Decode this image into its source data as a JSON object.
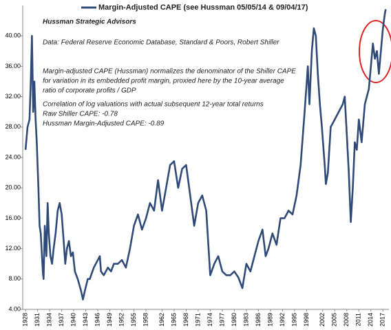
{
  "chart_data": {
    "type": "line",
    "annotations": [
      "Hussman Strategic Advisors",
      "Data: Federal Reserve Economic Database, Standard & Poors, Robert Shiller",
      "Margin-adjusted CAPE (Hussman) normalizes the denominator of the Shiller CAPE",
      "for variation in its embedded profit margin, proxied here by the 10-year average",
      "ratio of corporate profits / GDP",
      "Correlation of log valuations with actual subsequent 12-year total returns",
      "Raw Shiller CAPE: -0.78",
      "Hussman Margin-Adjusted CAPE: -0.89"
    ],
    "x": [
      1928.0,
      1928.5,
      1929.0,
      1929.3,
      1929.6,
      1929.9,
      1930.2,
      1930.5,
      1930.8,
      1931.2,
      1931.5,
      1931.8,
      1932.3,
      1932.5,
      1932.8,
      1933.2,
      1933.5,
      1933.8,
      1934.2,
      1934.6,
      1935.0,
      1935.5,
      1936.0,
      1936.5,
      1937.0,
      1937.5,
      1937.9,
      1938.3,
      1938.8,
      1939.3,
      1939.8,
      1940.3,
      1941.0,
      1941.8,
      1942.3,
      1942.8,
      1943.5,
      1944.0,
      1945.0,
      1946.0,
      1946.5,
      1946.8,
      1947.5,
      1948.5,
      1949.3,
      1950.0,
      1951.0,
      1952.0,
      1953.0,
      1954.0,
      1955.0,
      1956.0,
      1957.0,
      1958.0,
      1959.0,
      1960.0,
      1961.0,
      1962.0,
      1963.0,
      1964.0,
      1965.0,
      1966.0,
      1967.0,
      1968.0,
      1969.0,
      1970.0,
      1971.0,
      1972.0,
      1973.0,
      1974.0,
      1975.0,
      1976.0,
      1977.0,
      1978.0,
      1979.0,
      1980.0,
      1981.0,
      1982.0,
      1983.0,
      1984.0,
      1985.0,
      1986.0,
      1987.0,
      1987.8,
      1988.5,
      1989.5,
      1990.5,
      1991.5,
      1992.5,
      1993.5,
      1994.5,
      1995.5,
      1996.5,
      1997.5,
      1998.3,
      1998.7,
      1999.3,
      1999.8,
      2000.3,
      2000.8,
      2001.3,
      2001.8,
      2002.5,
      2002.8,
      2003.3,
      2004.0,
      2005.0,
      2006.0,
      2007.0,
      2007.5,
      2008.0,
      2008.5,
      2009.0,
      2009.5,
      2010.0,
      2010.5,
      2011.0,
      2011.7,
      2012.5,
      2013.5,
      2014.0,
      2014.5,
      2015.0,
      2015.5,
      2016.0,
      2016.5,
      2017.0,
      2017.5,
      2017.7
    ],
    "series": [
      {
        "name": "Margin-Adjusted CAPE (see Hussman 05/05/14 & 09/04/17)",
        "color": "#2f4a78",
        "values": [
          25,
          28,
          29,
          34,
          40,
          30,
          34,
          29,
          26,
          20,
          15,
          14,
          9,
          8,
          15,
          11,
          18,
          14,
          11,
          10,
          12,
          14,
          17,
          18,
          16.5,
          13,
          10,
          12,
          13,
          11,
          11.5,
          9,
          8,
          6.5,
          5.3,
          6.5,
          8,
          8,
          9.5,
          10.5,
          11,
          9,
          8.5,
          9.5,
          9,
          10,
          10,
          10.5,
          9.5,
          12,
          15,
          16.5,
          14.5,
          16,
          18,
          17,
          21,
          17,
          20,
          23,
          23.5,
          20,
          22.5,
          23,
          19,
          15,
          18,
          19,
          17,
          8.5,
          10,
          11,
          9,
          8.5,
          8.5,
          9,
          8.2,
          6.8,
          10,
          9,
          11,
          13,
          14.5,
          11,
          12,
          14,
          12.5,
          16,
          16,
          17,
          16.5,
          19,
          23,
          30,
          36,
          31,
          38,
          41,
          40,
          35,
          31,
          28,
          23,
          20.5,
          22,
          28,
          29,
          30,
          31,
          32,
          27,
          22,
          15.5,
          20,
          26,
          25,
          29,
          26,
          31,
          33,
          36,
          39,
          37,
          38,
          35,
          38,
          41,
          43,
          43.5
        ]
      }
    ],
    "xlim": [
      1927.3,
      2018.5
    ],
    "xticks": [
      1928,
      1931,
      1934,
      1937,
      1940,
      1943,
      1946,
      1949,
      1952,
      1955,
      1958,
      1962,
      1965,
      1968,
      1971,
      1974,
      1977,
      1980,
      1983,
      1986,
      1989,
      1992,
      1995,
      1998,
      2002,
      2005,
      2008,
      2011,
      2014,
      2017
    ],
    "ylim": [
      4,
      44
    ],
    "yticks": [
      {
        "value": 4,
        "label": "4.00"
      },
      {
        "value": 8,
        "label": "8.00"
      },
      {
        "value": 12,
        "label": "12.00"
      },
      {
        "value": 16,
        "label": "16.00"
      },
      {
        "value": 20,
        "label": "20.00"
      },
      {
        "value": 24,
        "label": "24.00"
      },
      {
        "value": 28,
        "label": "28.00"
      },
      {
        "value": 32,
        "label": "32.00"
      },
      {
        "value": 36,
        "label": "36.00"
      },
      {
        "value": 40,
        "label": "40.00"
      }
    ],
    "grid": false
  }
}
